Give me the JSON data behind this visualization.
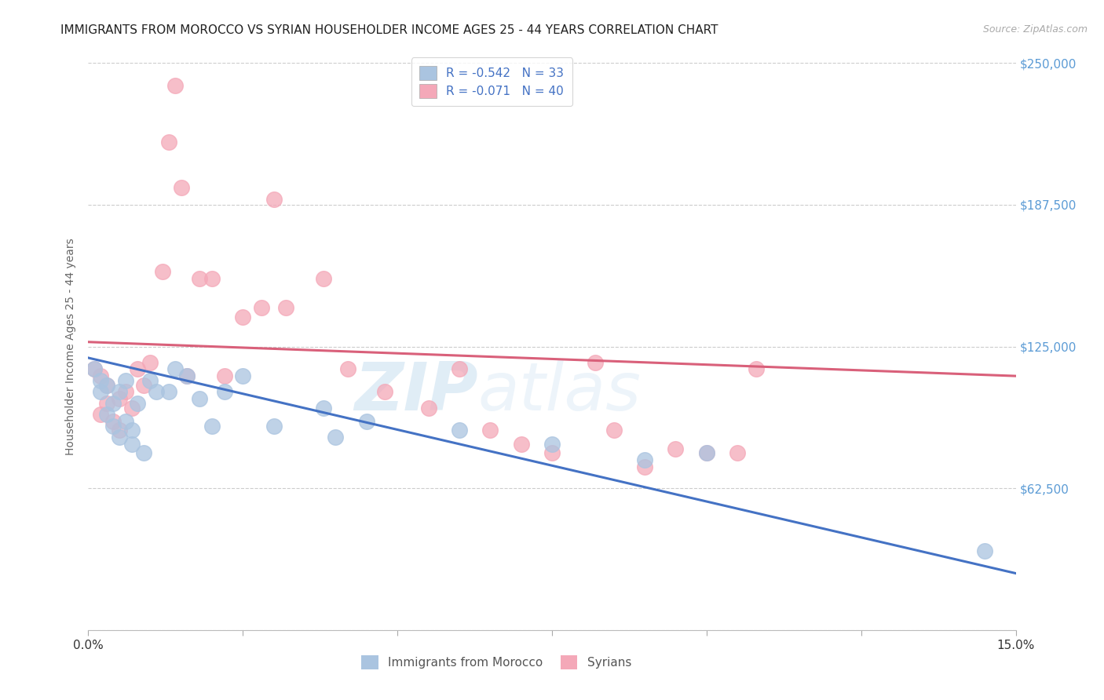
{
  "title": "IMMIGRANTS FROM MOROCCO VS SYRIAN HOUSEHOLDER INCOME AGES 25 - 44 YEARS CORRELATION CHART",
  "source": "Source: ZipAtlas.com",
  "ylabel": "Householder Income Ages 25 - 44 years",
  "xlim": [
    0,
    0.15
  ],
  "ylim": [
    0,
    250000
  ],
  "yticks": [
    0,
    62500,
    125000,
    187500,
    250000
  ],
  "ytick_labels": [
    "",
    "$62,500",
    "$125,000",
    "$187,500",
    "$250,000"
  ],
  "xticks": [
    0.0,
    0.025,
    0.05,
    0.075,
    0.1,
    0.125,
    0.15
  ],
  "xtick_labels": [
    "0.0%",
    "",
    "",
    "",
    "",
    "",
    "15.0%"
  ],
  "morocco_R": -0.542,
  "morocco_N": 33,
  "syrian_R": -0.071,
  "syrian_N": 40,
  "morocco_color": "#aac4e0",
  "syrian_color": "#f4a8b8",
  "morocco_line_color": "#4472c4",
  "syrian_line_color": "#d9607a",
  "background_color": "#ffffff",
  "grid_color": "#cccccc",
  "watermark_zip": "ZIP",
  "watermark_atlas": "atlas",
  "title_fontsize": 11,
  "tick_label_color_right": "#5b9bd5",
  "morocco_x": [
    0.001,
    0.002,
    0.002,
    0.003,
    0.003,
    0.004,
    0.004,
    0.005,
    0.005,
    0.006,
    0.006,
    0.007,
    0.007,
    0.008,
    0.009,
    0.01,
    0.011,
    0.013,
    0.014,
    0.016,
    0.018,
    0.02,
    0.022,
    0.025,
    0.03,
    0.038,
    0.04,
    0.045,
    0.06,
    0.075,
    0.09,
    0.1,
    0.145
  ],
  "morocco_y": [
    115000,
    110000,
    105000,
    108000,
    95000,
    100000,
    90000,
    105000,
    85000,
    110000,
    92000,
    88000,
    82000,
    100000,
    78000,
    110000,
    105000,
    105000,
    115000,
    112000,
    102000,
    90000,
    105000,
    112000,
    90000,
    98000,
    85000,
    92000,
    88000,
    82000,
    75000,
    78000,
    35000
  ],
  "syrian_x": [
    0.001,
    0.002,
    0.002,
    0.003,
    0.003,
    0.004,
    0.005,
    0.005,
    0.006,
    0.007,
    0.008,
    0.009,
    0.01,
    0.012,
    0.013,
    0.014,
    0.015,
    0.016,
    0.018,
    0.02,
    0.022,
    0.025,
    0.028,
    0.03,
    0.032,
    0.038,
    0.042,
    0.048,
    0.055,
    0.06,
    0.065,
    0.07,
    0.075,
    0.082,
    0.085,
    0.09,
    0.095,
    0.1,
    0.105,
    0.108
  ],
  "syrian_y": [
    115000,
    112000,
    95000,
    108000,
    100000,
    92000,
    102000,
    88000,
    105000,
    98000,
    115000,
    108000,
    118000,
    158000,
    215000,
    240000,
    195000,
    112000,
    155000,
    155000,
    112000,
    138000,
    142000,
    190000,
    142000,
    155000,
    115000,
    105000,
    98000,
    115000,
    88000,
    82000,
    78000,
    118000,
    88000,
    72000,
    80000,
    78000,
    78000,
    115000
  ],
  "morocco_line_x0": 0.0,
  "morocco_line_y0": 120000,
  "morocco_line_x1": 0.15,
  "morocco_line_y1": 25000,
  "syrian_line_x0": 0.0,
  "syrian_line_y0": 127000,
  "syrian_line_x1": 0.15,
  "syrian_line_y1": 112000
}
